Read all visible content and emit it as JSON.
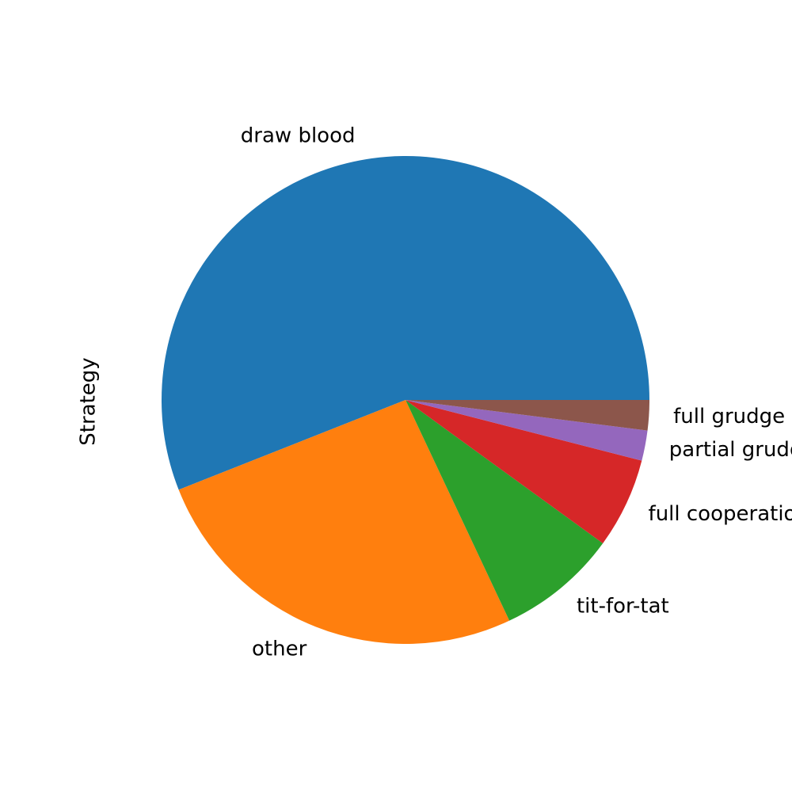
{
  "chart_data": {
    "type": "pie",
    "ylabel": "Strategy",
    "start_angle_deg": 0,
    "direction": "counterclockwise",
    "slices": [
      {
        "label": "draw blood",
        "value": 56,
        "color": "#1f77b4"
      },
      {
        "label": "other",
        "value": 26,
        "color": "#ff7f0e"
      },
      {
        "label": "tit-for-tat",
        "value": 8,
        "color": "#2ca02c"
      },
      {
        "label": "full cooperation",
        "value": 6,
        "color": "#d62728"
      },
      {
        "label": "partial grudge",
        "value": 2,
        "color": "#9467bd"
      },
      {
        "label": "full grudge",
        "value": 2,
        "color": "#8c564b"
      }
    ]
  }
}
